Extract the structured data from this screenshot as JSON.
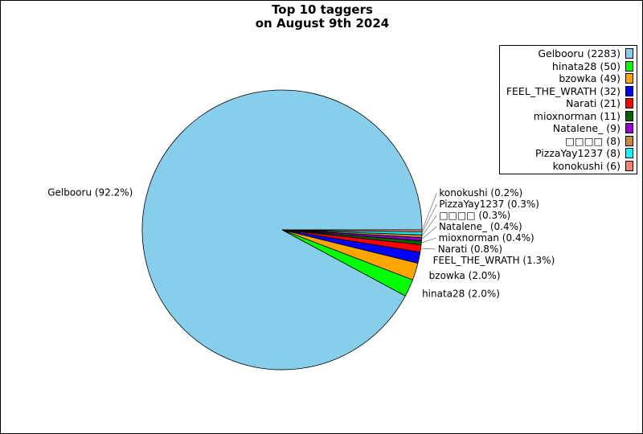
{
  "chart_data": {
    "type": "pie",
    "title": "Top 10 taggers\non August 9th 2024",
    "title_lines": [
      "Top 10 taggers",
      "on August 9th 2024"
    ],
    "legend_position": "top-right",
    "slices": [
      {
        "label": "Gelbooru",
        "value": 2283,
        "percent_label": "Gelbooru (92.2%)",
        "legend_label": "Gelbooru (2283)",
        "color": "#87ceeb"
      },
      {
        "label": "hinata28",
        "value": 50,
        "percent_label": "hinata28 (2.0%)",
        "legend_label": "hinata28 (50)",
        "color": "#00ff00"
      },
      {
        "label": "bzowka",
        "value": 49,
        "percent_label": "bzowka (2.0%)",
        "legend_label": "bzowka (49)",
        "color": "#ffa500"
      },
      {
        "label": "FEEL_THE_WRATH",
        "value": 32,
        "percent_label": "FEEL_THE_WRATH (1.3%)",
        "legend_label": "FEEL_THE_WRATH (32)",
        "color": "#0000ff"
      },
      {
        "label": "Narati",
        "value": 21,
        "percent_label": "Narati (0.8%)",
        "legend_label": "Narati (21)",
        "color": "#ff0000"
      },
      {
        "label": "mioxnorman",
        "value": 11,
        "percent_label": "mioxnorman (0.4%)",
        "legend_label": "mioxnorman (11)",
        "color": "#006400"
      },
      {
        "label": "Natalene_",
        "value": 9,
        "percent_label": "Natalene_ (0.4%)",
        "legend_label": "Natalene_ (9)",
        "color": "#9400d3"
      },
      {
        "label": "□□□□",
        "value": 8,
        "percent_label": "□□□□ (0.3%)",
        "legend_label": "□□□□ (8)",
        "color": "#cd853f"
      },
      {
        "label": "PizzaYay1237",
        "value": 8,
        "percent_label": "PizzaYay1237 (0.3%)",
        "legend_label": "PizzaYay1237 (8)",
        "color": "#00ffff"
      },
      {
        "label": "konokushi",
        "value": 6,
        "percent_label": "konokushi (0.2%)",
        "legend_label": "konokushi (6)",
        "color": "#fa8072"
      }
    ]
  }
}
